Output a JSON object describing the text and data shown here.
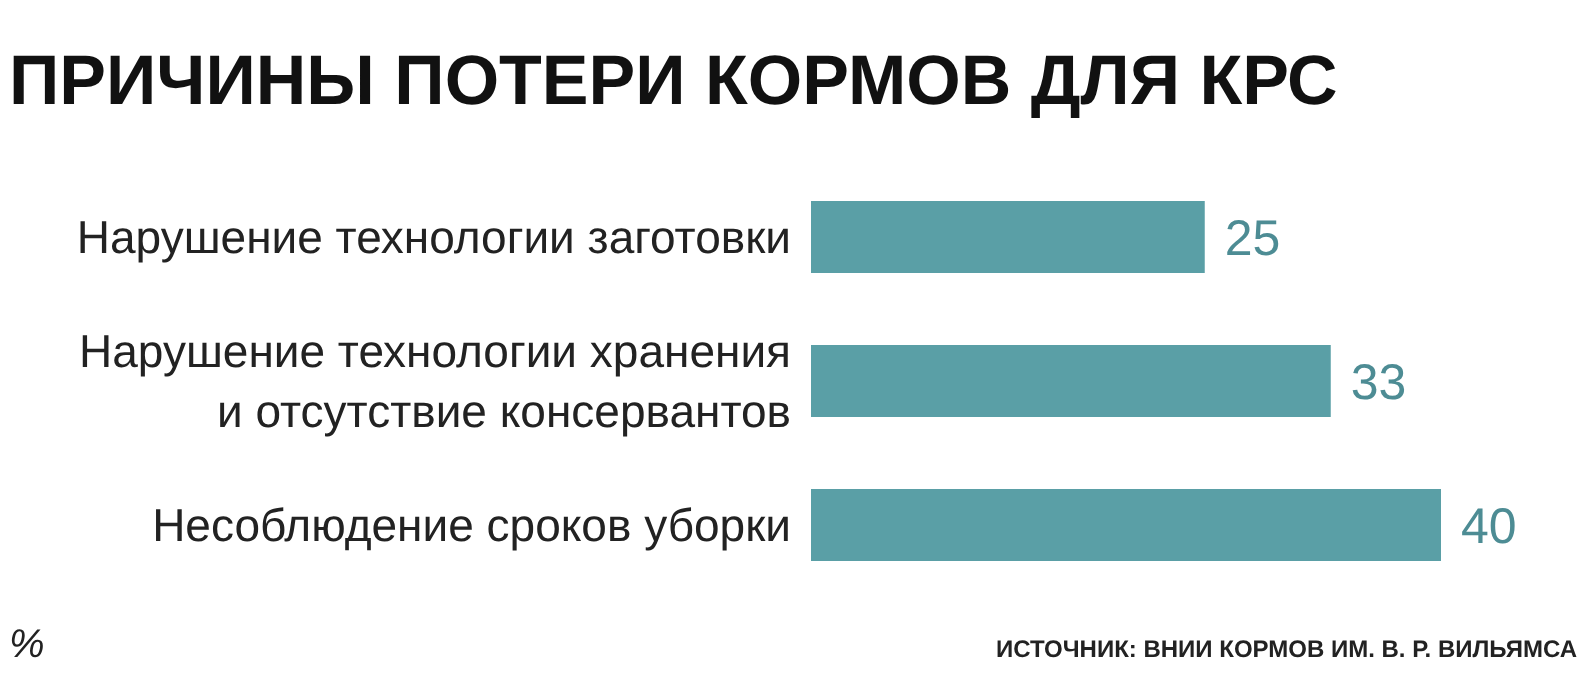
{
  "chart_data": {
    "type": "bar",
    "orientation": "horizontal",
    "title": "ПРИЧИНЫ ПОТЕРИ КОРМОВ ДЛЯ КРС",
    "categories": [
      "Нарушение технологии заготовки",
      "Нарушение технологии хранения\nи отсутствие консервантов",
      "Несоблюдение сроков уборки"
    ],
    "values": [
      25,
      33,
      40
    ],
    "color": "#5a9fa6",
    "data_labels": true,
    "annotations": [
      "%",
      "ИСТОЧНИК: ВНИИ КОРМОВ ИМ. В. Р. ВИЛЬЯМСА"
    ]
  }
}
